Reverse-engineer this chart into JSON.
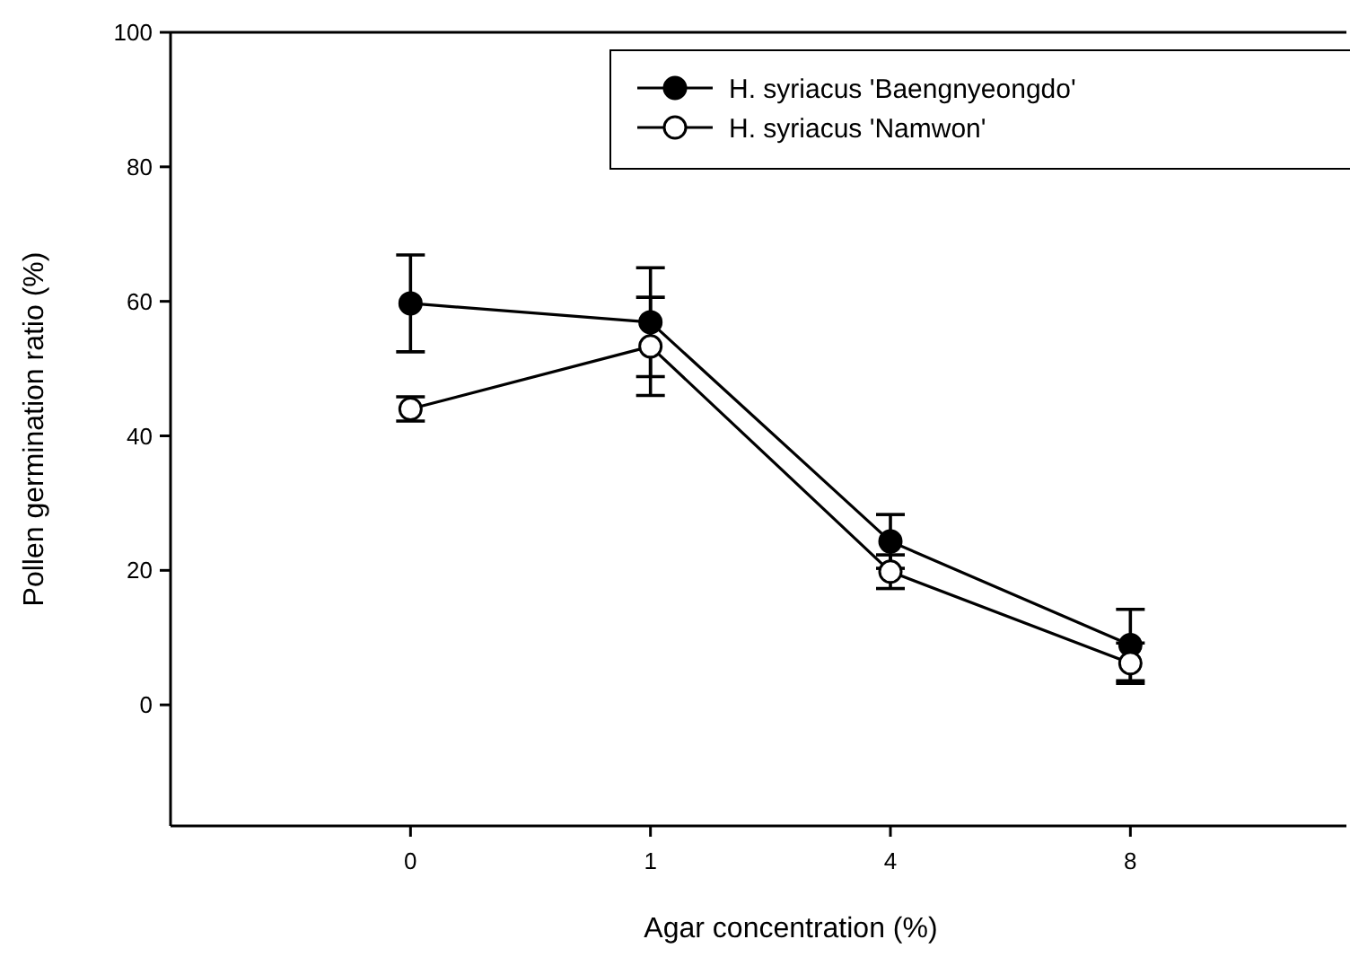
{
  "chart_data": {
    "type": "line",
    "xlabel": "Agar concentration (%)",
    "ylabel": "Pollen germination ratio (%)",
    "categories": [
      "0",
      "1",
      "4",
      "8"
    ],
    "ylim": [
      -18,
      100
    ],
    "yticks": [
      0,
      20,
      40,
      60,
      80,
      100
    ],
    "grid": false,
    "legend": "top right",
    "line_style": "solid",
    "series": [
      {
        "name": "H. syriacus 'Baengnyeongdo'",
        "color": "#000000",
        "marker": "circle",
        "values": [
          59.7,
          56.9,
          24.3,
          8.9
        ],
        "errors": [
          7.2,
          8.1,
          4,
          5.3
        ]
      },
      {
        "name": "H. syriacus 'Namwon'",
        "color": "#000000",
        "marker": "circle",
        "values": [
          44.0,
          53.3,
          19.8,
          6.2
        ],
        "errors": [
          1.8,
          7.3,
          2.5,
          3
        ]
      }
    ]
  }
}
